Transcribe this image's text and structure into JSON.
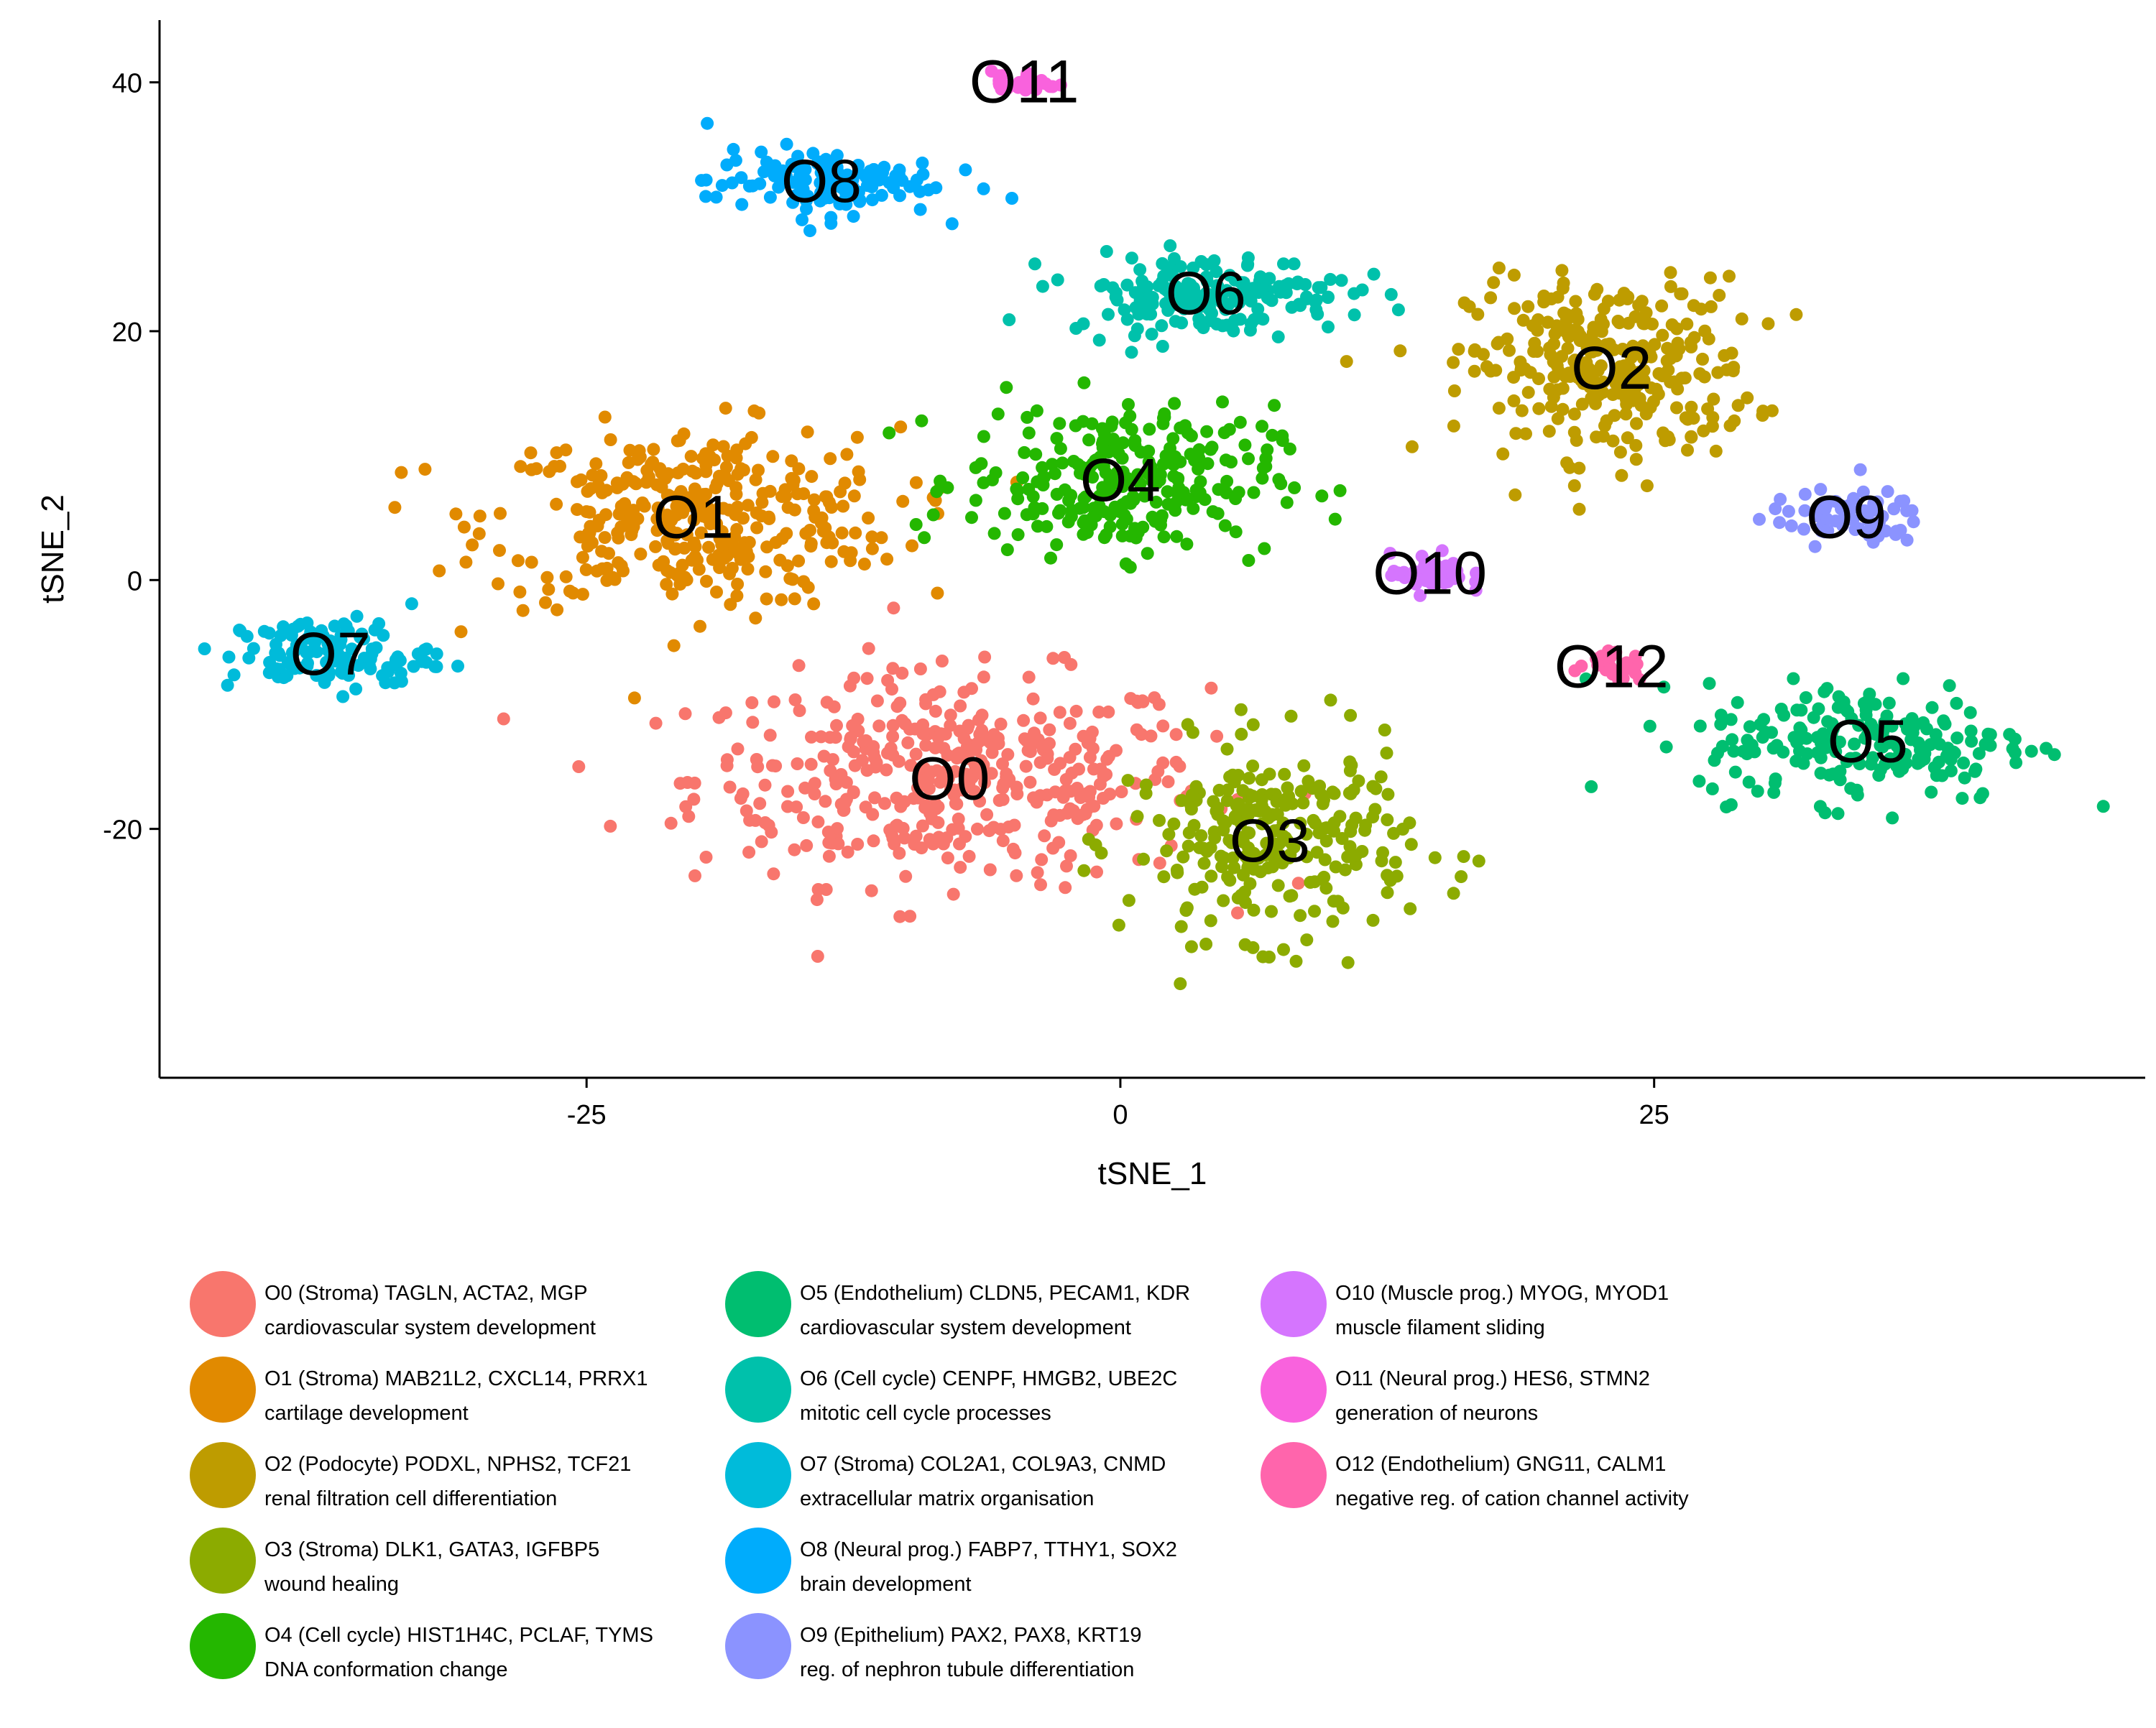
{
  "chart_data": {
    "type": "scatter",
    "title": "",
    "xlabel": "tSNE_1",
    "ylabel": "tSNE_2",
    "xlim": [
      -45,
      48
    ],
    "ylim": [
      -40,
      45
    ],
    "x_ticks": [
      -25,
      0,
      25
    ],
    "y_ticks": [
      -20,
      0,
      20,
      40
    ],
    "x_tick_labels": [
      "-25",
      "0",
      "25"
    ],
    "y_tick_labels": [
      "-20",
      "0",
      "20",
      "40"
    ],
    "grid": false,
    "legend_position": "bottom",
    "series": [
      {
        "name": "O0",
        "label": "O0",
        "color": "#F8766D",
        "center": [
          -8,
          -16
        ],
        "spread": [
          10,
          7
        ],
        "n": 420,
        "legend_line1": "O0 (Stroma) TAGLN, ACTA2, MGP",
        "legend_line2": "cardiovascular system development"
      },
      {
        "name": "O1",
        "label": "O1",
        "color": "#E18A00",
        "center": [
          -20,
          5
        ],
        "spread": [
          8,
          6
        ],
        "n": 360,
        "legend_line1": "O1 (Stroma) MAB21L2, CXCL14, PRRX1",
        "legend_line2": "cartilage development"
      },
      {
        "name": "O2",
        "label": "O2",
        "color": "#BE9C00",
        "center": [
          23,
          17
        ],
        "spread": [
          5.5,
          6
        ],
        "n": 300,
        "legend_line1": "O2 (Podocyte) PODXL, NPHS2, TCF21",
        "legend_line2": "renal filtration cell differentiation"
      },
      {
        "name": "O3",
        "label": "O3",
        "color": "#8CAB00",
        "center": [
          7,
          -21
        ],
        "spread": [
          5.5,
          6.5
        ],
        "n": 260,
        "legend_line1": "O3 (Stroma) DLK1, GATA3, IGFBP5",
        "legend_line2": "wound healing"
      },
      {
        "name": "O4",
        "label": "O4",
        "color": "#24B700",
        "center": [
          0,
          8
        ],
        "spread": [
          6,
          5
        ],
        "n": 270,
        "legend_line1": "O4 (Cell cycle) HIST1H4C, PCLAF, TYMS",
        "legend_line2": "DNA conformation change"
      },
      {
        "name": "O5",
        "label": "O5",
        "color": "#00BE70",
        "center": [
          35,
          -13
        ],
        "spread": [
          6.5,
          4
        ],
        "n": 200,
        "legend_line1": "O5 (Endothelium) CLDN5, PECAM1, KDR",
        "legend_line2": "cardiovascular system development"
      },
      {
        "name": "O6",
        "label": "O6",
        "color": "#00C1AB",
        "center": [
          4,
          23
        ],
        "spread": [
          5.5,
          2.6
        ],
        "n": 180,
        "legend_line1": "O6 (Cell cycle) CENPF, HMGB2, UBE2C",
        "legend_line2": "mitotic cell cycle processes"
      },
      {
        "name": "O7",
        "label": "O7",
        "color": "#00BBDA",
        "center": [
          -37,
          -6
        ],
        "spread": [
          4,
          2.5
        ],
        "n": 120,
        "legend_line1": "O7 (Stroma) COL2A1, COL9A3, CNMD",
        "legend_line2": "extracellular matrix organisation"
      },
      {
        "name": "O8",
        "label": "O8",
        "color": "#00ACFC",
        "center": [
          -14,
          32
        ],
        "spread": [
          4.5,
          2.2
        ],
        "n": 130,
        "legend_line1": "O8 (Neural prog.) FABP7, TTHY1, SOX2",
        "legend_line2": "brain development"
      },
      {
        "name": "O9",
        "label": "O9",
        "color": "#8B93FF",
        "center": [
          34,
          5
        ],
        "spread": [
          3,
          1.8
        ],
        "n": 70,
        "legend_line1": "O9 (Epithelium) PAX2, PAX8, KRT19",
        "legend_line2": "reg. of nephron tubule differentiation"
      },
      {
        "name": "O10",
        "label": "O10",
        "color": "#D575FE",
        "center": [
          14.5,
          0.5
        ],
        "spread": [
          1.5,
          1.3
        ],
        "n": 45,
        "legend_line1": "O10 (Muscle prog.) MYOG, MYOD1",
        "legend_line2": "muscle filament sliding"
      },
      {
        "name": "O11",
        "label": "O11",
        "color": "#F962DD",
        "center": [
          -4.5,
          40
        ],
        "spread": [
          1.3,
          0.8
        ],
        "n": 30,
        "legend_line1": "O11 (Neural prog.) HES6, STMN2",
        "legend_line2": "generation of neurons"
      },
      {
        "name": "O12",
        "label": "O12",
        "color": "#FF65AC",
        "center": [
          23,
          -7
        ],
        "spread": [
          1.3,
          1.0
        ],
        "n": 25,
        "legend_line1": "O12 (Endothelium) GNG11, CALM1",
        "legend_line2": "negative reg. of cation channel activity"
      }
    ]
  }
}
